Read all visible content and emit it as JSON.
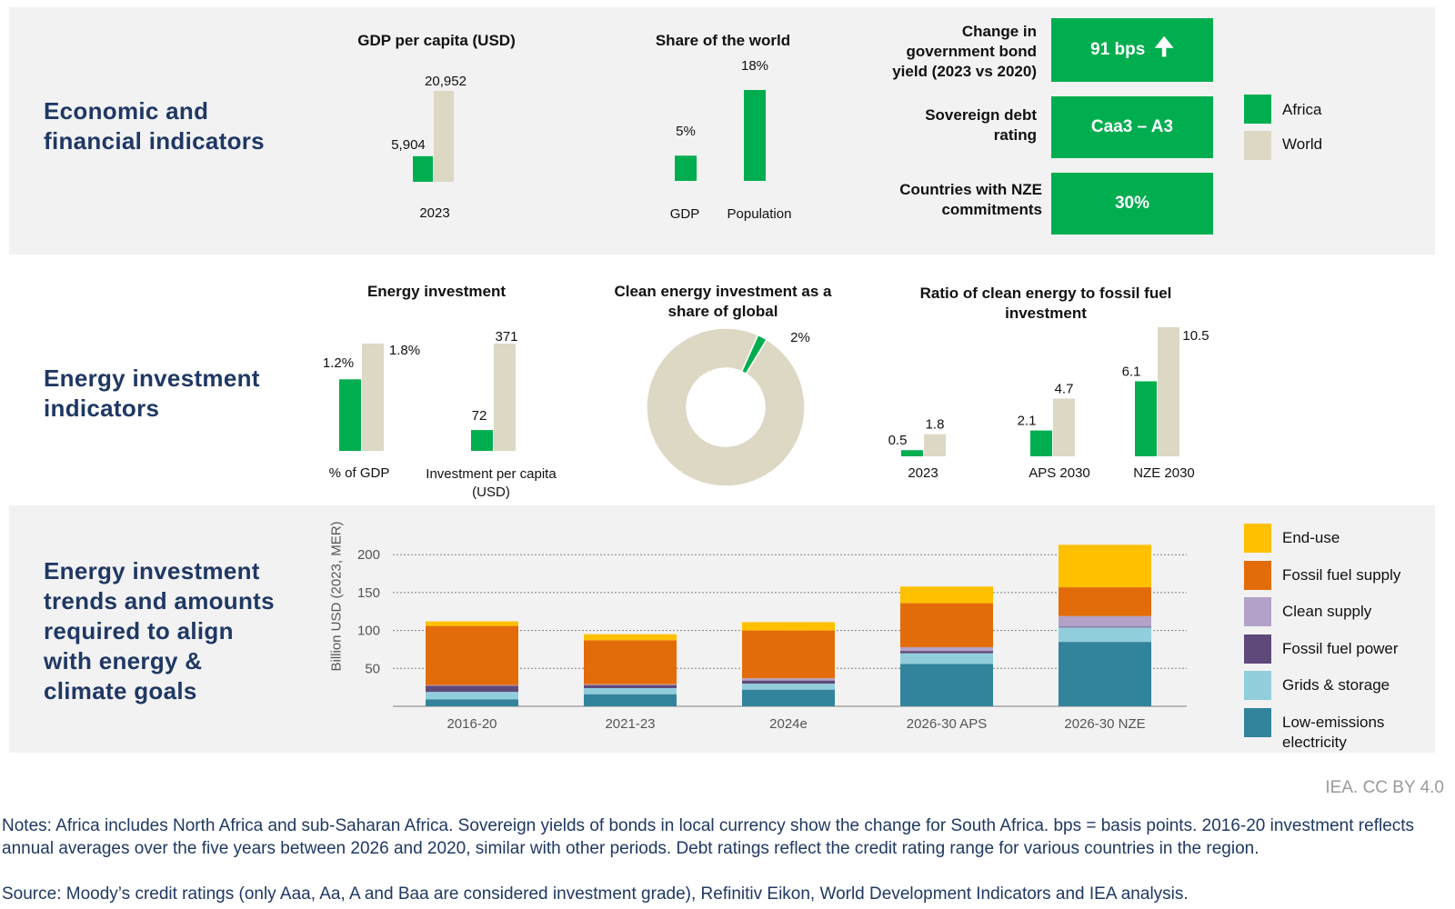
{
  "colors": {
    "africa": "#00ae4f",
    "world": "#ddd8c4",
    "panel": "#f2f2f2",
    "title": "#1f3864"
  },
  "sections": {
    "economic": "Economic and\nfinancial indicators",
    "energy": "Energy investment\nindicators",
    "trends": "Energy investment\ntrends and amounts\nrequired to align\nwith energy &\nclimate goals"
  },
  "indicators": {
    "bond_label": "Change in\ngovernment bond\nyield (2023 vs 2020)",
    "bond_value": "91 bps",
    "debt_label": "Sovereign debt\nrating",
    "debt_value": "Caa3 – A3",
    "nze_label": "Countries with NZE\ncommitments",
    "nze_value": "30%"
  },
  "legend": {
    "africa": "Africa",
    "world": "World"
  },
  "stack_legend": [
    {
      "label": "End-use",
      "color": "#ffc000"
    },
    {
      "label": "Fossil fuel supply",
      "color": "#e36c0a"
    },
    {
      "label": "Clean supply",
      "color": "#b3a2c7"
    },
    {
      "label": "Fossil fuel power",
      "color": "#5f497a"
    },
    {
      "label": "Grids & storage",
      "color": "#92cddc"
    },
    {
      "label": "Low-emissions\nelectricity",
      "color": "#31849b"
    }
  ],
  "chart_data": [
    {
      "type": "bar",
      "title": "GDP per capita (USD)",
      "categories": [
        "2023"
      ],
      "series": [
        {
          "name": "Africa",
          "values": [
            5904
          ]
        },
        {
          "name": "World",
          "values": [
            20952
          ]
        }
      ],
      "value_labels": [
        "5,904",
        "20,952"
      ]
    },
    {
      "type": "bar",
      "title": "Share of the world",
      "categories": [
        "GDP",
        "Population"
      ],
      "series": [
        {
          "name": "Africa",
          "values": [
            5,
            18
          ]
        }
      ],
      "value_labels": [
        "5%",
        "18%"
      ]
    },
    {
      "type": "bar",
      "title": "Energy investment",
      "categories": [
        "% of GDP",
        "Investment per capita (USD)"
      ],
      "series": [
        {
          "name": "Africa",
          "values": [
            1.2,
            72
          ]
        },
        {
          "name": "World",
          "values": [
            1.8,
            371
          ]
        }
      ],
      "value_labels": [
        [
          "1.2%",
          "72"
        ],
        [
          "1.8%",
          "371"
        ]
      ]
    },
    {
      "type": "pie",
      "title": "Clean energy investment as a share of global",
      "slices": [
        {
          "name": "Africa",
          "value": 2
        },
        {
          "name": "Rest of world",
          "value": 98
        }
      ],
      "value_label": "2%"
    },
    {
      "type": "bar",
      "title": "Ratio of clean energy to fossil fuel investment",
      "categories": [
        "2023",
        "APS 2030",
        "NZE 2030"
      ],
      "series": [
        {
          "name": "Africa",
          "values": [
            0.5,
            2.1,
            6.1
          ]
        },
        {
          "name": "World",
          "values": [
            1.8,
            4.7,
            10.5
          ]
        }
      ],
      "value_labels": [
        [
          "0.5",
          "2.1",
          "6.1"
        ],
        [
          "1.8",
          "4.7",
          "10.5"
        ]
      ]
    },
    {
      "type": "bar",
      "stacked": true,
      "title": "",
      "ylabel": "Billion USD (2023, MER)",
      "ylim": [
        0,
        210
      ],
      "yticks": [
        50,
        100,
        150,
        200
      ],
      "categories": [
        "2016-20",
        "2021-23",
        "2024e",
        "2026-30 APS",
        "2026-30 NZE"
      ],
      "series": [
        {
          "name": "Low-emissions electricity",
          "values": [
            9,
            16,
            22,
            56,
            85
          ]
        },
        {
          "name": "Grids & storage",
          "values": [
            10,
            8,
            8,
            14,
            19
          ]
        },
        {
          "name": "Fossil fuel power",
          "values": [
            8,
            4,
            4,
            3,
            1
          ]
        },
        {
          "name": "Clean supply",
          "values": [
            1,
            1,
            3,
            5,
            14
          ]
        },
        {
          "name": "Fossil fuel supply",
          "values": [
            78,
            58,
            63,
            58,
            38
          ]
        },
        {
          "name": "End-use",
          "values": [
            6,
            8,
            11,
            22,
            56
          ]
        }
      ]
    }
  ],
  "credit": "IEA. CC BY 4.0",
  "notes": "Notes: Africa includes North Africa and sub-Saharan Africa. Sovereign yields of bonds in local currency show the change for South Africa. bps = basis points. 2016-20 investment reflects annual averages over the five years between 2026 and 2020, similar with other periods. Debt ratings reflect the credit rating range for various countries in the region.",
  "source": "Source: Moody’s credit ratings (only Aaa, Aa, A and Baa are considered investment grade), Refinitiv Eikon, World Development Indicators and IEA analysis."
}
